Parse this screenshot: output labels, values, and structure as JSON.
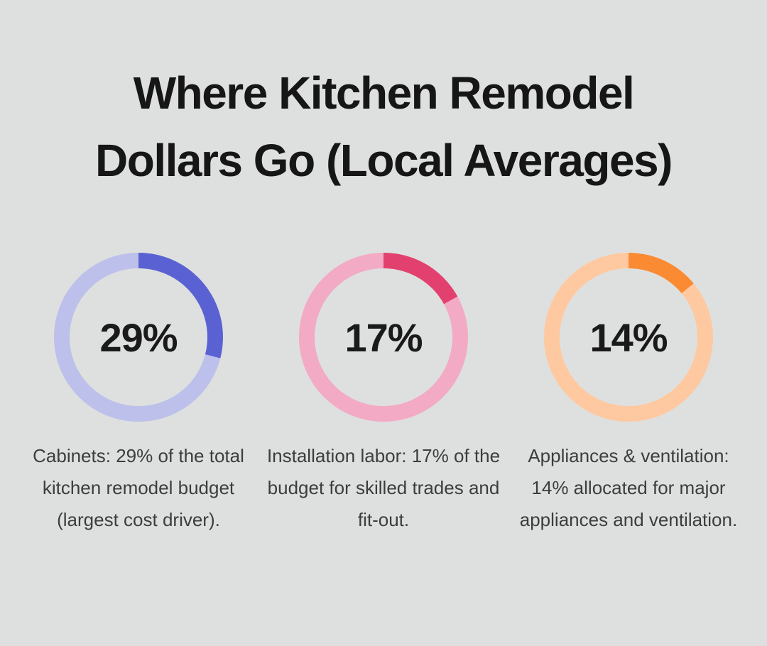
{
  "page": {
    "background_color": "#dee0df"
  },
  "title": {
    "line1": "Where Kitchen Remodel",
    "line2": "Dollars Go (Local Averages)",
    "color": "#161616"
  },
  "charts": [
    {
      "id": "cabinets",
      "value": 29,
      "percent_label": "29%",
      "fill_color": "#5a62d3",
      "track_color": "#bdc0ea",
      "caption": "Cabinets: 29% of the total kitchen remodel budget (largest cost driver)."
    },
    {
      "id": "installation-labor",
      "value": 17,
      "percent_label": "17%",
      "fill_color": "#e2416f",
      "track_color": "#f2aac5",
      "caption": "Installation labor: 17% of the budget for skilled trades and fit-out."
    },
    {
      "id": "appliances-ventilation",
      "value": 14,
      "percent_label": "14%",
      "fill_color": "#fa8b33",
      "track_color": "#fec9a0",
      "caption": "Appliances & ventilation: 14% allocated for major appliances and ventilation."
    }
  ],
  "chart_data": {
    "type": "pie",
    "subtype": "donut-multiples",
    "title": "Where Kitchen Remodel Dollars Go (Local Averages)",
    "categories": [
      "Cabinets",
      "Installation labor",
      "Appliances & ventilation"
    ],
    "values": [
      29,
      17,
      14
    ],
    "unit": "%",
    "legend": "none",
    "annotations": [
      "Cabinets: 29% of the total kitchen remodel budget (largest cost driver).",
      "Installation labor: 17% of the budget for skilled trades and fit-out.",
      "Appliances & ventilation: 14% allocated for major appliances and ventilation."
    ],
    "donut_start_angle_deg": 0,
    "donut_direction": "clockwise"
  }
}
